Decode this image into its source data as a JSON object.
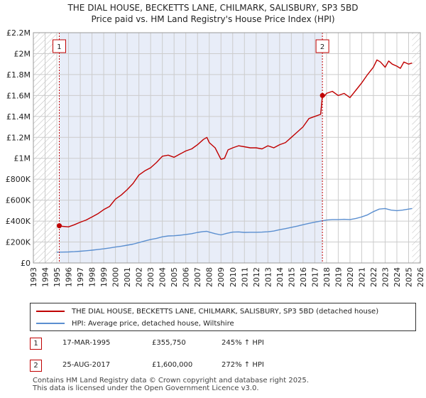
{
  "title_line1": "THE DIAL HOUSE, BECKETTS LANE, CHILMARK, SALISBURY, SP3 5BD",
  "title_line2": "Price paid vs. HM Land Registry's House Price Index (HPI)",
  "legend": {
    "property_label": "THE DIAL HOUSE, BECKETTS LANE, CHILMARK, SALISBURY, SP3 5BD (detached house)",
    "hpi_label": "HPI: Average price, detached house, Wiltshire"
  },
  "sales": [
    {
      "num": "1",
      "date": "17-MAR-1995",
      "price": "£355,750",
      "hpi": "245% ↑ HPI"
    },
    {
      "num": "2",
      "date": "25-AUG-2017",
      "price": "£1,600,000",
      "hpi": "272% ↑ HPI"
    }
  ],
  "footer_line1": "Contains HM Land Registry data © Crown copyright and database right 2025.",
  "footer_line2": "This data is licensed under the Open Government Licence v3.0.",
  "colors": {
    "property": "#c00000",
    "hpi": "#5b8fd0",
    "shade": "#e8edf8",
    "grid": "#cccccc",
    "marker_line": "#c00000"
  },
  "chart_data": {
    "type": "line",
    "title": "THE DIAL HOUSE, BECKETTS LANE, CHILMARK, SALISBURY, SP3 5BD",
    "xlabel": "",
    "ylabel": "",
    "xlim": [
      1993,
      2026
    ],
    "ylim": [
      0,
      2200000
    ],
    "x_ticks": [
      1993,
      1994,
      1995,
      1996,
      1997,
      1998,
      1999,
      2000,
      2001,
      2002,
      2003,
      2004,
      2005,
      2006,
      2007,
      2008,
      2009,
      2010,
      2011,
      2012,
      2013,
      2014,
      2015,
      2016,
      2017,
      2018,
      2019,
      2020,
      2021,
      2022,
      2023,
      2024,
      2025,
      2026
    ],
    "y_ticks": [
      {
        "value": 0,
        "label": "£0"
      },
      {
        "value": 200000,
        "label": "£200K"
      },
      {
        "value": 400000,
        "label": "£400K"
      },
      {
        "value": 600000,
        "label": "£600K"
      },
      {
        "value": 800000,
        "label": "£800K"
      },
      {
        "value": 1000000,
        "label": "£1M"
      },
      {
        "value": 1200000,
        "label": "£1.2M"
      },
      {
        "value": 1400000,
        "label": "£1.4M"
      },
      {
        "value": 1600000,
        "label": "£1.6M"
      },
      {
        "value": 1800000,
        "label": "£1.8M"
      },
      {
        "value": 2000000,
        "label": "£2M"
      },
      {
        "value": 2200000,
        "label": "£2.2M"
      }
    ],
    "shaded_region": [
      1995.21,
      2017.65
    ],
    "hatched_regions": [
      [
        1993,
        1995.0
      ],
      [
        2025.3,
        2026
      ]
    ],
    "sale_markers": [
      {
        "label": "1",
        "x": 1995.21,
        "y": 355750
      },
      {
        "label": "2",
        "x": 2017.65,
        "y": 1600000
      }
    ],
    "series": [
      {
        "name": "THE DIAL HOUSE, BECKETTS LANE, CHILMARK, SALISBURY, SP3 5BD (detached house)",
        "color": "#c00000",
        "x": [
          1995.21,
          1995.5,
          1996,
          1996.5,
          1997,
          1997.5,
          1998,
          1998.5,
          1999,
          1999.5,
          2000,
          2000.5,
          2001,
          2001.5,
          2002,
          2002.5,
          2003,
          2003.5,
          2004,
          2004.5,
          2005,
          2005.5,
          2006,
          2006.5,
          2007,
          2007.5,
          2007.8,
          2008,
          2008.5,
          2009,
          2009.3,
          2009.6,
          2010,
          2010.5,
          2011,
          2011.5,
          2012,
          2012.5,
          2013,
          2013.5,
          2014,
          2014.5,
          2015,
          2015.5,
          2016,
          2016.5,
          2017,
          2017.5,
          2017.65,
          2017.8,
          2018,
          2018.5,
          2019,
          2019.5,
          2020,
          2020.5,
          2021,
          2021.5,
          2022,
          2022.3,
          2022.6,
          2023,
          2023.3,
          2023.6,
          2024,
          2024.3,
          2024.6,
          2025,
          2025.3
        ],
        "y": [
          355750,
          350000,
          345000,
          365000,
          390000,
          410000,
          440000,
          470000,
          510000,
          540000,
          610000,
          650000,
          700000,
          760000,
          840000,
          880000,
          910000,
          960000,
          1020000,
          1030000,
          1010000,
          1040000,
          1070000,
          1090000,
          1130000,
          1180000,
          1200000,
          1150000,
          1100000,
          990000,
          1000000,
          1080000,
          1100000,
          1120000,
          1110000,
          1100000,
          1100000,
          1090000,
          1120000,
          1100000,
          1130000,
          1150000,
          1200000,
          1250000,
          1300000,
          1380000,
          1400000,
          1420000,
          1600000,
          1590000,
          1620000,
          1640000,
          1600000,
          1620000,
          1580000,
          1650000,
          1720000,
          1800000,
          1870000,
          1940000,
          1920000,
          1870000,
          1930000,
          1900000,
          1880000,
          1860000,
          1920000,
          1900000,
          1910000
        ]
      },
      {
        "name": "HPI: Average price, detached house, Wiltshire",
        "color": "#5b8fd0",
        "x": [
          1995,
          1995.5,
          1996,
          1996.5,
          1997,
          1997.5,
          1998,
          1998.5,
          1999,
          1999.5,
          2000,
          2000.5,
          2001,
          2001.5,
          2002,
          2002.5,
          2003,
          2003.5,
          2004,
          2004.5,
          2005,
          2005.5,
          2006,
          2006.5,
          2007,
          2007.5,
          2007.8,
          2008,
          2008.5,
          2009,
          2009.5,
          2010,
          2010.5,
          2011,
          2011.5,
          2012,
          2012.5,
          2013,
          2013.5,
          2014,
          2014.5,
          2015,
          2015.5,
          2016,
          2016.5,
          2017,
          2017.5,
          2018,
          2018.5,
          2019,
          2019.5,
          2020,
          2020.5,
          2021,
          2021.5,
          2022,
          2022.5,
          2023,
          2023.5,
          2024,
          2024.5,
          2025,
          2025.3
        ],
        "y": [
          103000,
          104000,
          105000,
          108000,
          112000,
          117000,
          122000,
          128000,
          135000,
          143000,
          152000,
          160000,
          170000,
          180000,
          195000,
          210000,
          225000,
          235000,
          250000,
          258000,
          260000,
          265000,
          272000,
          280000,
          292000,
          300000,
          302000,
          295000,
          280000,
          268000,
          283000,
          295000,
          297000,
          292000,
          293000,
          293000,
          295000,
          298000,
          305000,
          318000,
          328000,
          340000,
          352000,
          365000,
          378000,
          390000,
          400000,
          410000,
          415000,
          415000,
          417000,
          415000,
          425000,
          440000,
          460000,
          490000,
          515000,
          520000,
          505000,
          500000,
          505000,
          515000,
          520000
        ]
      }
    ]
  }
}
